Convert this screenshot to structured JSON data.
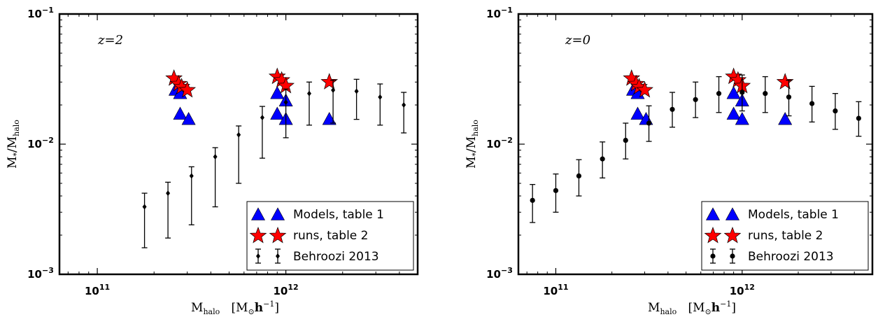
{
  "chart_data": [
    {
      "type": "scatter",
      "annotation": "z=2",
      "xlabel": "M_halo [M_⊙h^-1]",
      "ylabel": "M_*/M_halo",
      "xscale": "log",
      "yscale": "log",
      "xlim": [
        63000000000.0,
        5000000000000.0
      ],
      "ylim": [
        0.001,
        0.1
      ],
      "xticks": [
        "10^11",
        "10^12"
      ],
      "yticks": [
        "10^-3",
        "10^-2",
        "10^-1"
      ],
      "legend_position": "bottom-right",
      "series": [
        {
          "name": "Models, table 1",
          "marker": "triangle",
          "color": "#0000ff",
          "points": [
            [
              260000000000.0,
              0.026
            ],
            [
              275000000000.0,
              0.0245
            ],
            [
              275000000000.0,
              0.017
            ],
            [
              305000000000.0,
              0.0155
            ],
            [
              900000000000.0,
              0.0245
            ],
            [
              900000000000.0,
              0.017
            ],
            [
              1000000000000.0,
              0.0215
            ],
            [
              1000000000000.0,
              0.0155
            ],
            [
              1700000000000.0,
              0.0155
            ]
          ]
        },
        {
          "name": "runs, table 2",
          "marker": "star",
          "color": "#ff0000",
          "points": [
            [
              255000000000.0,
              0.032
            ],
            [
              270000000000.0,
              0.029
            ],
            [
              280000000000.0,
              0.0275
            ],
            [
              300000000000.0,
              0.026
            ],
            [
              900000000000.0,
              0.033
            ],
            [
              950000000000.0,
              0.031
            ],
            [
              1000000000000.0,
              0.028
            ],
            [
              1700000000000.0,
              0.03
            ]
          ]
        },
        {
          "name": "Behroozi 2013",
          "marker": "errorbar",
          "color": "#000000",
          "points": [
            {
              "x": 178000000000.0,
              "y": 0.0033,
              "lo": 0.0016,
              "hi": 0.0042
            },
            {
              "x": 237000000000.0,
              "y": 0.0042,
              "lo": 0.0019,
              "hi": 0.0051
            },
            {
              "x": 316000000000.0,
              "y": 0.0057,
              "lo": 0.0024,
              "hi": 0.0067
            },
            {
              "x": 422000000000.0,
              "y": 0.008,
              "lo": 0.0033,
              "hi": 0.0094
            },
            {
              "x": 562000000000.0,
              "y": 0.0118,
              "lo": 0.005,
              "hi": 0.0138
            },
            {
              "x": 750000000000.0,
              "y": 0.016,
              "lo": 0.0078,
              "hi": 0.0195
            },
            {
              "x": 1000000000000.0,
              "y": 0.021,
              "lo": 0.0112,
              "hi": 0.0265
            },
            {
              "x": 1330000000000.0,
              "y": 0.0245,
              "lo": 0.014,
              "hi": 0.03
            },
            {
              "x": 1780000000000.0,
              "y": 0.026,
              "lo": 0.0145,
              "hi": 0.031
            },
            {
              "x": 2370000000000.0,
              "y": 0.0255,
              "lo": 0.0155,
              "hi": 0.0315
            },
            {
              "x": 3160000000000.0,
              "y": 0.023,
              "lo": 0.014,
              "hi": 0.029
            },
            {
              "x": 4220000000000.0,
              "y": 0.02,
              "lo": 0.0122,
              "hi": 0.025
            }
          ]
        }
      ]
    },
    {
      "type": "scatter",
      "annotation": "z=0",
      "xlabel": "M_halo [M_⊙h^-1]",
      "ylabel": "M_*/M_halo",
      "xscale": "log",
      "yscale": "log",
      "xlim": [
        63000000000.0,
        5000000000000.0
      ],
      "ylim": [
        0.001,
        0.1
      ],
      "xticks": [
        "10^11",
        "10^12"
      ],
      "yticks": [
        "10^-3",
        "10^-2",
        "10^-1"
      ],
      "legend_position": "bottom-right",
      "series": [
        {
          "name": "Models, table 1",
          "marker": "triangle",
          "color": "#0000ff",
          "points": [
            [
              260000000000.0,
              0.026
            ],
            [
              275000000000.0,
              0.0245
            ],
            [
              275000000000.0,
              0.017
            ],
            [
              305000000000.0,
              0.0155
            ],
            [
              900000000000.0,
              0.0245
            ],
            [
              900000000000.0,
              0.017
            ],
            [
              1000000000000.0,
              0.0215
            ],
            [
              1000000000000.0,
              0.0155
            ],
            [
              1700000000000.0,
              0.0155
            ]
          ]
        },
        {
          "name": "runs, table 2",
          "marker": "star",
          "color": "#ff0000",
          "points": [
            [
              255000000000.0,
              0.032
            ],
            [
              270000000000.0,
              0.029
            ],
            [
              280000000000.0,
              0.0275
            ],
            [
              300000000000.0,
              0.026
            ],
            [
              900000000000.0,
              0.033
            ],
            [
              950000000000.0,
              0.031
            ],
            [
              1000000000000.0,
              0.028
            ],
            [
              1700000000000.0,
              0.03
            ]
          ]
        },
        {
          "name": "Behroozi 2013",
          "marker": "errorbar",
          "color": "#000000",
          "points": [
            {
              "x": 75000000000.0,
              "y": 0.0037,
              "lo": 0.0025,
              "hi": 0.0049
            },
            {
              "x": 100000000000.0,
              "y": 0.0044,
              "lo": 0.003,
              "hi": 0.0059
            },
            {
              "x": 133000000000.0,
              "y": 0.0057,
              "lo": 0.004,
              "hi": 0.0076
            },
            {
              "x": 178000000000.0,
              "y": 0.0077,
              "lo": 0.0055,
              "hi": 0.0104
            },
            {
              "x": 237000000000.0,
              "y": 0.0107,
              "lo": 0.0077,
              "hi": 0.0145
            },
            {
              "x": 316000000000.0,
              "y": 0.0145,
              "lo": 0.0105,
              "hi": 0.0197
            },
            {
              "x": 422000000000.0,
              "y": 0.0185,
              "lo": 0.0135,
              "hi": 0.025
            },
            {
              "x": 562000000000.0,
              "y": 0.022,
              "lo": 0.016,
              "hi": 0.03
            },
            {
              "x": 750000000000.0,
              "y": 0.0245,
              "lo": 0.0175,
              "hi": 0.033
            },
            {
              "x": 1000000000000.0,
              "y": 0.025,
              "lo": 0.018,
              "hi": 0.034
            },
            {
              "x": 1330000000000.0,
              "y": 0.0245,
              "lo": 0.0175,
              "hi": 0.033
            },
            {
              "x": 1780000000000.0,
              "y": 0.023,
              "lo": 0.0165,
              "hi": 0.031
            },
            {
              "x": 2370000000000.0,
              "y": 0.0205,
              "lo": 0.0148,
              "hi": 0.0278
            },
            {
              "x": 3160000000000.0,
              "y": 0.018,
              "lo": 0.013,
              "hi": 0.0245
            },
            {
              "x": 4220000000000.0,
              "y": 0.0158,
              "lo": 0.0115,
              "hi": 0.0212
            }
          ]
        }
      ]
    }
  ]
}
